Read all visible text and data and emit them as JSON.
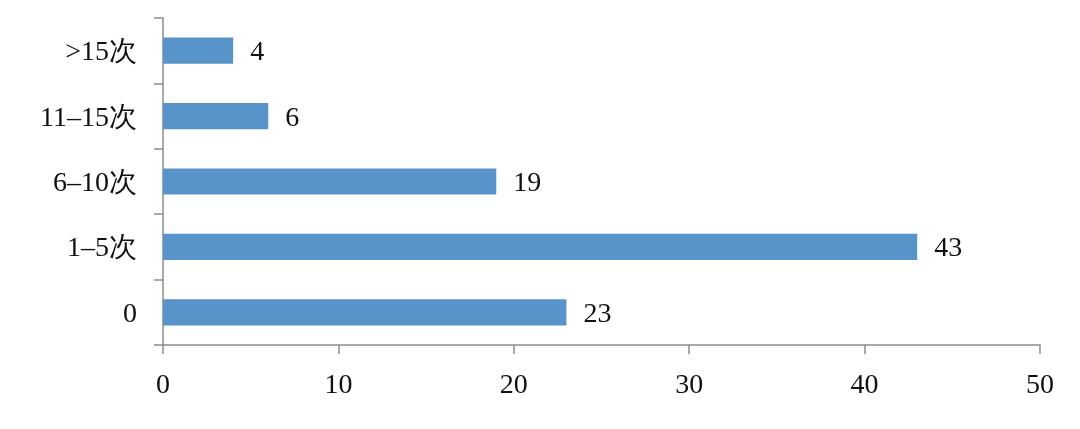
{
  "chart_data": {
    "type": "bar",
    "orientation": "horizontal",
    "categories": [
      ">15次",
      "11–15次",
      "6–10次",
      "1–5次",
      "0"
    ],
    "values": [
      4,
      6,
      19,
      43,
      23
    ],
    "color": "#5894c9",
    "xlim": [
      0,
      50
    ],
    "xticks": [
      0,
      10,
      20,
      30,
      40,
      50
    ],
    "data_labels": true,
    "grid": false
  }
}
